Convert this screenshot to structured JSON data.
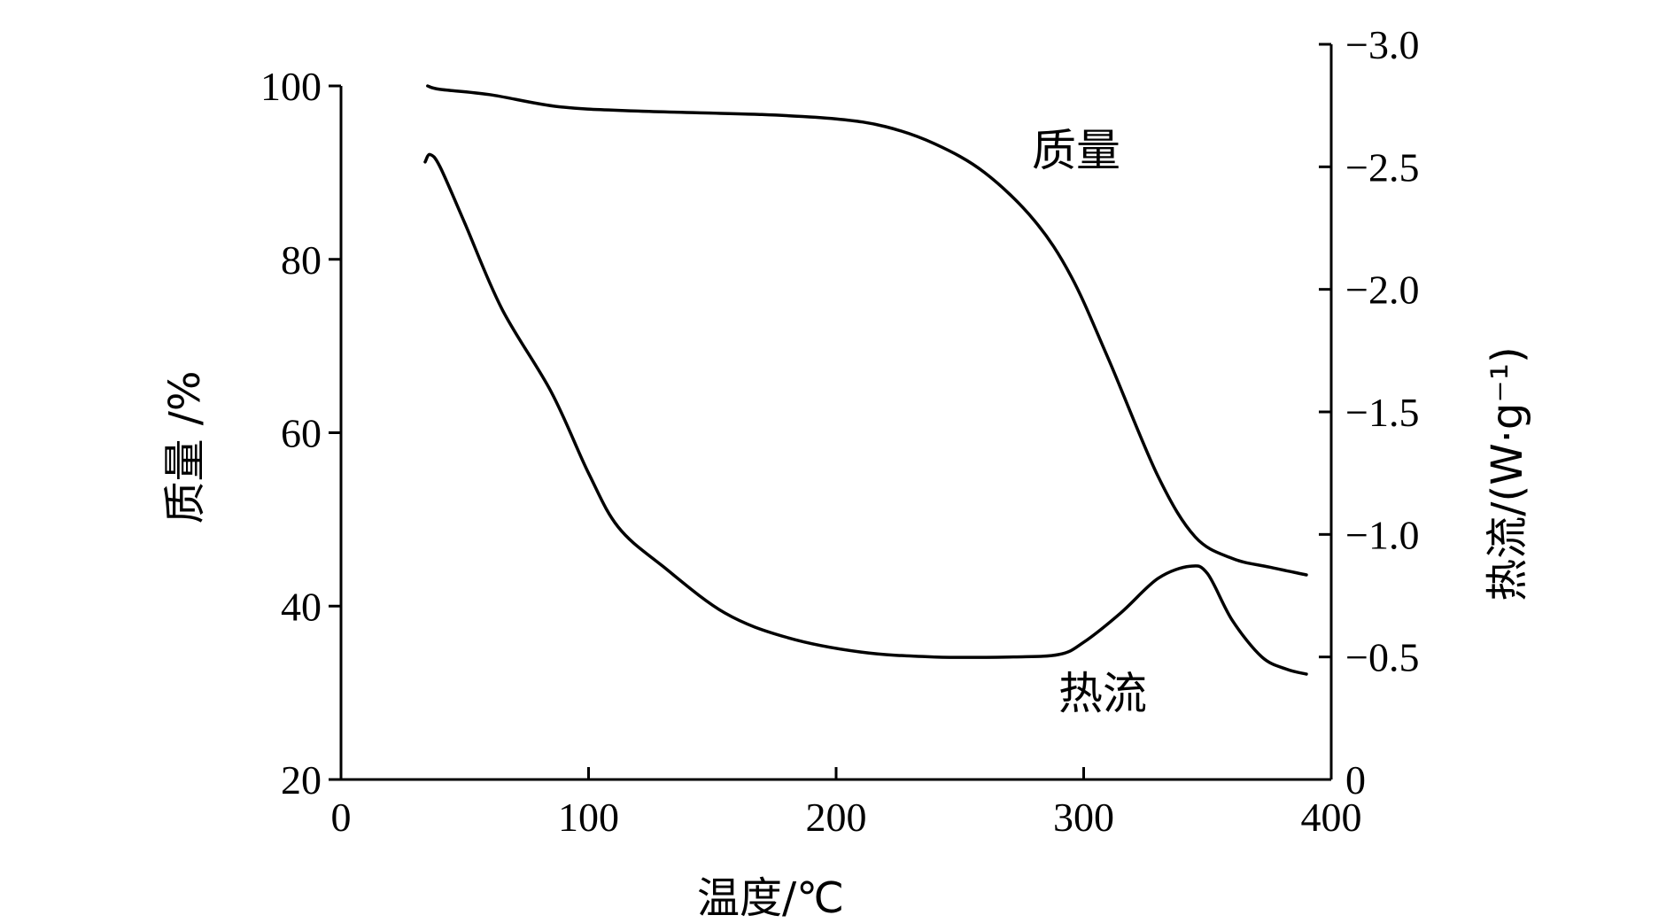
{
  "chart_data": {
    "type": "line",
    "xlabel": "温度/℃",
    "ylabel": "质量 /%",
    "y2label": "热流/(W·g⁻¹)",
    "xlim": [
      0,
      400
    ],
    "ylim": [
      20,
      100
    ],
    "y2lim": [
      0,
      -3.0
    ],
    "x_ticks": [
      0,
      100,
      200,
      300,
      400
    ],
    "x_tick_labels": [
      "0",
      "100",
      "200",
      "300",
      "400"
    ],
    "y_ticks": [
      20,
      40,
      60,
      80,
      100
    ],
    "y_tick_labels": [
      "20",
      "40",
      "60",
      "80",
      "100"
    ],
    "y2_ticks": [
      0,
      -0.5,
      -1.0,
      -1.5,
      -2.0,
      -2.5,
      -3.0
    ],
    "y2_tick_labels": [
      "0",
      "−0.5",
      "−1.0",
      "−1.5",
      "−2.0",
      "−2.5",
      "−3.0"
    ],
    "grid": false,
    "series": [
      {
        "name": "质量",
        "axis": "left",
        "x": [
          35,
          40,
          60,
          88,
          120,
          170,
          200,
          220,
          240,
          260,
          280,
          295,
          310,
          330,
          345,
          360,
          375,
          390
        ],
        "y": [
          100,
          99.6,
          99,
          97.6,
          97.1,
          96.7,
          96.2,
          95.3,
          93.3,
          90,
          84.5,
          78,
          68.5,
          55,
          48,
          45.5,
          44.5,
          43.6
        ]
      },
      {
        "name": "热流",
        "axis": "right",
        "x": [
          34,
          36,
          40,
          50,
          65,
          85,
          100,
          112,
          130,
          155,
          180,
          210,
          240,
          270,
          290,
          300,
          315,
          330,
          343,
          350,
          360,
          372,
          382,
          390
        ],
        "y": [
          -2.52,
          -2.55,
          -2.5,
          -2.27,
          -1.92,
          -1.58,
          -1.25,
          -1.03,
          -0.87,
          -0.68,
          -0.58,
          -0.52,
          -0.5,
          -0.5,
          -0.51,
          -0.56,
          -0.68,
          -0.82,
          -0.87,
          -0.84,
          -0.65,
          -0.5,
          -0.45,
          -0.43
        ]
      }
    ]
  }
}
